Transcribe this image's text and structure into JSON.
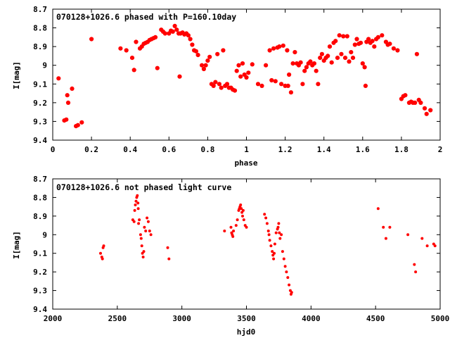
{
  "chart_data": [
    {
      "type": "scatter",
      "title": "070128+1026.6 phased with P=160.10day",
      "xlabel": "phase",
      "ylabel": "I[mag]",
      "xlim": [
        0,
        2
      ],
      "ylim": [
        8.7,
        9.4
      ],
      "y_inverted": true,
      "xticks": [
        "0",
        "0.2",
        "0.4",
        "0.6",
        "0.8",
        "1",
        "1.2",
        "1.4",
        "1.6",
        "1.8",
        "2"
      ],
      "xtick_values": [
        0,
        0.2,
        0.4,
        0.6,
        0.8,
        1,
        1.2,
        1.4,
        1.6,
        1.8,
        2
      ],
      "yticks": [
        "8.7",
        "8.8",
        "8.9",
        "9",
        "9.1",
        "9.2",
        "9.3",
        "9.4"
      ],
      "ytick_values": [
        8.7,
        8.8,
        8.9,
        9.0,
        9.1,
        9.2,
        9.3,
        9.4
      ],
      "grid": false,
      "marker_color": "#ff0000",
      "points": [
        [
          0.03,
          9.07
        ],
        [
          0.06,
          9.295
        ],
        [
          0.07,
          9.29
        ],
        [
          0.075,
          9.16
        ],
        [
          0.08,
          9.2
        ],
        [
          0.1,
          9.125
        ],
        [
          0.12,
          9.325
        ],
        [
          0.13,
          9.32
        ],
        [
          0.15,
          9.305
        ],
        [
          0.2,
          8.86
        ],
        [
          0.35,
          8.91
        ],
        [
          0.38,
          8.92
        ],
        [
          0.41,
          8.96
        ],
        [
          0.42,
          9.025
        ],
        [
          0.43,
          8.875
        ],
        [
          0.45,
          8.91
        ],
        [
          0.46,
          8.9
        ],
        [
          0.47,
          8.885
        ],
        [
          0.48,
          8.88
        ],
        [
          0.49,
          8.875
        ],
        [
          0.5,
          8.865
        ],
        [
          0.51,
          8.86
        ],
        [
          0.52,
          8.855
        ],
        [
          0.53,
          8.85
        ],
        [
          0.54,
          9.015
        ],
        [
          0.56,
          8.81
        ],
        [
          0.57,
          8.82
        ],
        [
          0.58,
          8.83
        ],
        [
          0.6,
          8.83
        ],
        [
          0.61,
          8.815
        ],
        [
          0.62,
          8.82
        ],
        [
          0.63,
          8.79
        ],
        [
          0.64,
          8.81
        ],
        [
          0.65,
          8.83
        ],
        [
          0.655,
          9.06
        ],
        [
          0.66,
          8.83
        ],
        [
          0.67,
          8.825
        ],
        [
          0.68,
          8.835
        ],
        [
          0.69,
          8.83
        ],
        [
          0.7,
          8.84
        ],
        [
          0.71,
          8.86
        ],
        [
          0.72,
          8.89
        ],
        [
          0.73,
          8.92
        ],
        [
          0.74,
          8.925
        ],
        [
          0.75,
          8.945
        ],
        [
          0.77,
          9.0
        ],
        [
          0.78,
          9.02
        ],
        [
          0.79,
          9.0
        ],
        [
          0.8,
          8.975
        ],
        [
          0.81,
          8.955
        ],
        [
          0.82,
          9.1
        ],
        [
          0.83,
          9.11
        ],
        [
          0.84,
          9.09
        ],
        [
          0.85,
          8.94
        ],
        [
          0.86,
          9.1
        ],
        [
          0.87,
          9.12
        ],
        [
          0.88,
          8.92
        ],
        [
          0.89,
          9.11
        ],
        [
          0.9,
          9.1
        ],
        [
          0.91,
          9.12
        ],
        [
          0.92,
          9.12
        ],
        [
          0.93,
          9.13
        ],
        [
          0.94,
          9.135
        ],
        [
          0.95,
          9.03
        ],
        [
          0.96,
          9.0
        ],
        [
          0.97,
          9.06
        ],
        [
          0.98,
          8.99
        ],
        [
          0.99,
          9.05
        ],
        [
          1.0,
          9.065
        ],
        [
          1.01,
          9.04
        ],
        [
          1.03,
          8.995
        ],
        [
          1.06,
          9.1
        ],
        [
          1.08,
          9.11
        ],
        [
          1.1,
          9.0
        ],
        [
          1.12,
          8.92
        ],
        [
          1.13,
          9.08
        ],
        [
          1.14,
          8.91
        ],
        [
          1.15,
          9.085
        ],
        [
          1.16,
          8.905
        ],
        [
          1.17,
          8.9
        ],
        [
          1.18,
          9.1
        ],
        [
          1.19,
          8.895
        ],
        [
          1.2,
          9.11
        ],
        [
          1.21,
          8.92
        ],
        [
          1.215,
          9.11
        ],
        [
          1.22,
          9.05
        ],
        [
          1.23,
          9.145
        ],
        [
          1.24,
          8.99
        ],
        [
          1.25,
          8.93
        ],
        [
          1.26,
          8.99
        ],
        [
          1.27,
          9.0
        ],
        [
          1.28,
          8.985
        ],
        [
          1.29,
          9.1
        ],
        [
          1.3,
          9.03
        ],
        [
          1.31,
          9.01
        ],
        [
          1.32,
          8.99
        ],
        [
          1.33,
          8.98
        ],
        [
          1.34,
          9.0
        ],
        [
          1.35,
          8.99
        ],
        [
          1.36,
          9.03
        ],
        [
          1.37,
          9.1
        ],
        [
          1.38,
          8.96
        ],
        [
          1.39,
          8.94
        ],
        [
          1.4,
          8.975
        ],
        [
          1.41,
          8.96
        ],
        [
          1.42,
          8.95
        ],
        [
          1.43,
          8.9
        ],
        [
          1.44,
          8.985
        ],
        [
          1.45,
          8.88
        ],
        [
          1.46,
          8.87
        ],
        [
          1.47,
          8.96
        ],
        [
          1.48,
          8.84
        ],
        [
          1.49,
          8.94
        ],
        [
          1.5,
          8.845
        ],
        [
          1.51,
          8.96
        ],
        [
          1.52,
          8.845
        ],
        [
          1.53,
          8.98
        ],
        [
          1.54,
          8.93
        ],
        [
          1.55,
          8.96
        ],
        [
          1.56,
          8.89
        ],
        [
          1.57,
          8.86
        ],
        [
          1.58,
          8.885
        ],
        [
          1.59,
          8.88
        ],
        [
          1.6,
          8.99
        ],
        [
          1.61,
          9.01
        ],
        [
          1.615,
          9.11
        ],
        [
          1.62,
          8.875
        ],
        [
          1.63,
          8.86
        ],
        [
          1.64,
          8.88
        ],
        [
          1.65,
          8.87
        ],
        [
          1.66,
          8.9
        ],
        [
          1.67,
          8.86
        ],
        [
          1.68,
          8.85
        ],
        [
          1.7,
          8.84
        ],
        [
          1.72,
          8.875
        ],
        [
          1.73,
          8.89
        ],
        [
          1.74,
          8.885
        ],
        [
          1.76,
          8.91
        ],
        [
          1.78,
          8.92
        ],
        [
          1.8,
          9.18
        ],
        [
          1.81,
          9.165
        ],
        [
          1.82,
          9.16
        ],
        [
          1.84,
          9.2
        ],
        [
          1.85,
          9.195
        ],
        [
          1.86,
          9.2
        ],
        [
          1.87,
          9.2
        ],
        [
          1.88,
          8.94
        ],
        [
          1.89,
          9.185
        ],
        [
          1.9,
          9.2
        ],
        [
          1.92,
          9.23
        ],
        [
          1.93,
          9.26
        ],
        [
          1.95,
          9.24
        ]
      ]
    },
    {
      "type": "scatter",
      "title": "070128+1026.6 not phased light curve",
      "xlabel": "hjd0",
      "ylabel": "I[mag]",
      "xlim": [
        2000,
        5000
      ],
      "ylim": [
        8.7,
        9.4
      ],
      "y_inverted": true,
      "xticks": [
        "2000",
        "2500",
        "3000",
        "3500",
        "4000",
        "4500",
        "5000"
      ],
      "xtick_values": [
        2000,
        2500,
        3000,
        3500,
        4000,
        4500,
        5000
      ],
      "yticks": [
        "8.7",
        "8.8",
        "8.9",
        "9",
        "9.1",
        "9.2",
        "9.3",
        "9.4"
      ],
      "ytick_values": [
        8.7,
        8.8,
        8.9,
        9.0,
        9.1,
        9.2,
        9.3,
        9.4
      ],
      "grid": false,
      "marker_color": "#ff0000",
      "points": [
        [
          2370,
          9.1
        ],
        [
          2380,
          9.12
        ],
        [
          2385,
          9.13
        ],
        [
          2390,
          9.07
        ],
        [
          2395,
          9.06
        ],
        [
          2620,
          8.92
        ],
        [
          2630,
          8.93
        ],
        [
          2635,
          8.87
        ],
        [
          2640,
          8.84
        ],
        [
          2645,
          8.82
        ],
        [
          2650,
          8.8
        ],
        [
          2655,
          8.79
        ],
        [
          2660,
          8.83
        ],
        [
          2662,
          8.86
        ],
        [
          2665,
          8.94
        ],
        [
          2670,
          8.92
        ],
        [
          2680,
          9.0
        ],
        [
          2685,
          9.02
        ],
        [
          2690,
          9.06
        ],
        [
          2695,
          9.1
        ],
        [
          2700,
          9.12
        ],
        [
          2705,
          9.09
        ],
        [
          2710,
          8.96
        ],
        [
          2720,
          8.98
        ],
        [
          2730,
          8.91
        ],
        [
          2740,
          8.93
        ],
        [
          2750,
          8.98
        ],
        [
          2760,
          9.0
        ],
        [
          2890,
          9.07
        ],
        [
          2900,
          9.13
        ],
        [
          3330,
          8.98
        ],
        [
          3380,
          8.96
        ],
        [
          3385,
          8.99
        ],
        [
          3390,
          9.0
        ],
        [
          3395,
          9.01
        ],
        [
          3400,
          8.98
        ],
        [
          3420,
          8.95
        ],
        [
          3430,
          8.92
        ],
        [
          3440,
          8.87
        ],
        [
          3445,
          8.86
        ],
        [
          3450,
          8.85
        ],
        [
          3455,
          8.84
        ],
        [
          3460,
          8.86
        ],
        [
          3465,
          8.88
        ],
        [
          3470,
          8.9
        ],
        [
          3475,
          8.87
        ],
        [
          3480,
          8.92
        ],
        [
          3490,
          8.95
        ],
        [
          3500,
          8.96
        ],
        [
          3640,
          8.89
        ],
        [
          3650,
          8.91
        ],
        [
          3660,
          8.94
        ],
        [
          3670,
          8.98
        ],
        [
          3675,
          9.0
        ],
        [
          3680,
          9.03
        ],
        [
          3690,
          9.06
        ],
        [
          3700,
          9.09
        ],
        [
          3705,
          9.11
        ],
        [
          3710,
          9.13
        ],
        [
          3715,
          9.1
        ],
        [
          3720,
          9.05
        ],
        [
          3730,
          8.99
        ],
        [
          3740,
          8.97
        ],
        [
          3745,
          8.96
        ],
        [
          3750,
          8.94
        ],
        [
          3755,
          8.99
        ],
        [
          3760,
          9.02
        ],
        [
          3770,
          9.0
        ],
        [
          3780,
          9.09
        ],
        [
          3790,
          9.13
        ],
        [
          3800,
          9.17
        ],
        [
          3810,
          9.2
        ],
        [
          3820,
          9.23
        ],
        [
          3830,
          9.27
        ],
        [
          3840,
          9.3
        ],
        [
          3845,
          9.32
        ],
        [
          3850,
          9.31
        ],
        [
          4520,
          8.86
        ],
        [
          4560,
          8.96
        ],
        [
          4580,
          9.02
        ],
        [
          4610,
          8.96
        ],
        [
          4750,
          9.0
        ],
        [
          4800,
          9.16
        ],
        [
          4810,
          9.2
        ],
        [
          4860,
          9.02
        ],
        [
          4900,
          9.06
        ],
        [
          4950,
          9.05
        ],
        [
          4960,
          9.06
        ]
      ]
    }
  ]
}
